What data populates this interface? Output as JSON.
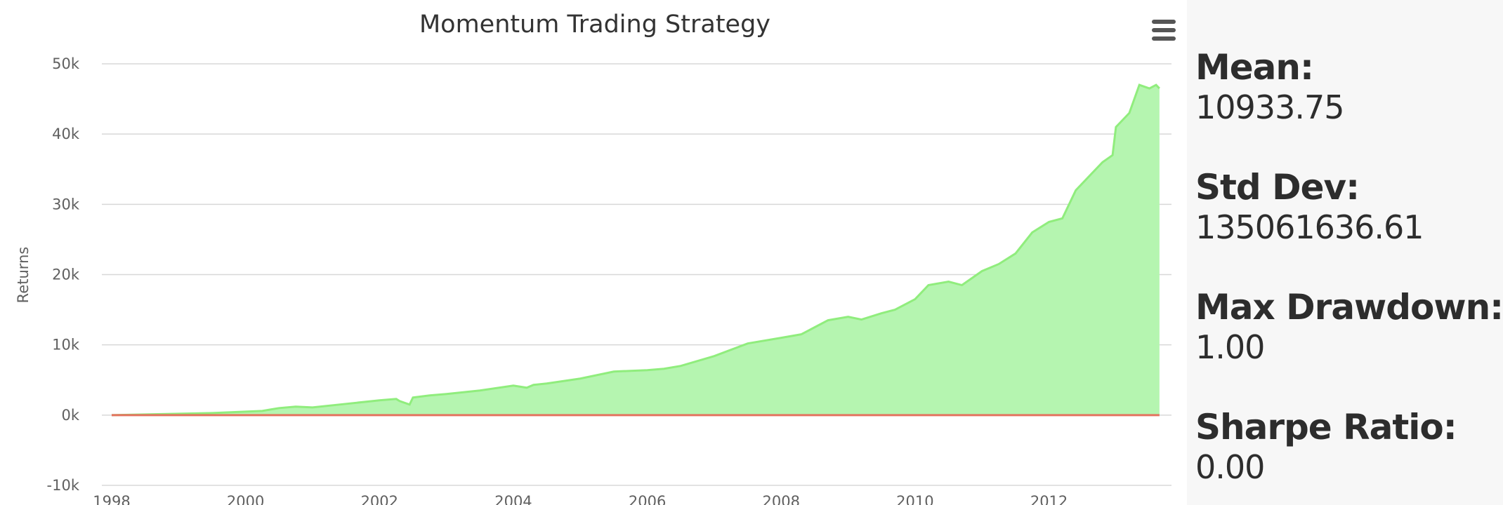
{
  "chart_data": {
    "type": "area",
    "title": "Momentum Trading Strategy",
    "xlabel": "",
    "ylabel": "Returns",
    "ylim": [
      -10000,
      50000
    ],
    "xlim": [
      "1998",
      "2013-09"
    ],
    "y_ticks": [
      "-10k",
      "0k",
      "10k",
      "20k",
      "30k",
      "40k",
      "50k"
    ],
    "y_tick_values": [
      -10000,
      0,
      10000,
      20000,
      30000,
      40000,
      50000
    ],
    "x_ticks": [
      "1998",
      "2000",
      "2002",
      "2004",
      "2006",
      "2008",
      "2010",
      "2012"
    ],
    "x_tick_values": [
      1998,
      2000,
      2002,
      2004,
      2006,
      2008,
      2010,
      2012
    ],
    "grid": "horizontal",
    "legend": "none",
    "series": [
      {
        "color": "#90ed7d",
        "fill": "#b5f5b0",
        "x": [
          1998.0,
          1998.5,
          1999.0,
          1999.5,
          2000.0,
          2000.25,
          2000.5,
          2000.75,
          2001.0,
          2001.5,
          2002.0,
          2002.25,
          2002.3,
          2002.45,
          2002.5,
          2002.75,
          2003.0,
          2003.5,
          2004.0,
          2004.2,
          2004.3,
          2004.5,
          2005.0,
          2005.5,
          2006.0,
          2006.25,
          2006.5,
          2007.0,
          2007.5,
          2008.0,
          2008.3,
          2008.5,
          2008.7,
          2009.0,
          2009.2,
          2009.5,
          2009.7,
          2010.0,
          2010.2,
          2010.5,
          2010.7,
          2011.0,
          2011.25,
          2011.5,
          2011.75,
          2012.0,
          2012.2,
          2012.4,
          2012.6,
          2012.8,
          2012.95,
          2013.0,
          2013.2,
          2013.35,
          2013.5,
          2013.6,
          2013.65
        ],
        "y": [
          0,
          100,
          200,
          300,
          500,
          600,
          1000,
          1200,
          1100,
          1600,
          2100,
          2300,
          2000,
          1500,
          2500,
          2800,
          3000,
          3500,
          4200,
          3900,
          4300,
          4500,
          5200,
          6200,
          6400,
          6600,
          7000,
          8400,
          10200,
          11000,
          11500,
          12500,
          13500,
          14000,
          13600,
          14500,
          15000,
          16500,
          18500,
          19000,
          18500,
          20500,
          21500,
          23000,
          26000,
          27500,
          28000,
          32000,
          34000,
          36000,
          37000,
          41000,
          43000,
          47000,
          46500,
          47000,
          46500
        ]
      },
      {
        "color": "#e4735f",
        "x": [
          1998.0,
          2013.65
        ],
        "y": [
          0,
          0
        ]
      }
    ]
  },
  "ui": {
    "menu_icon": "hamburger-menu-icon"
  },
  "stats": [
    {
      "label": "Mean:",
      "value": "10933.75"
    },
    {
      "label": "Std Dev:",
      "value": "135061636.61"
    },
    {
      "label": "Max Drawdown:",
      "value": "1.00"
    },
    {
      "label": "Sharpe Ratio:",
      "value": "0.00"
    }
  ]
}
